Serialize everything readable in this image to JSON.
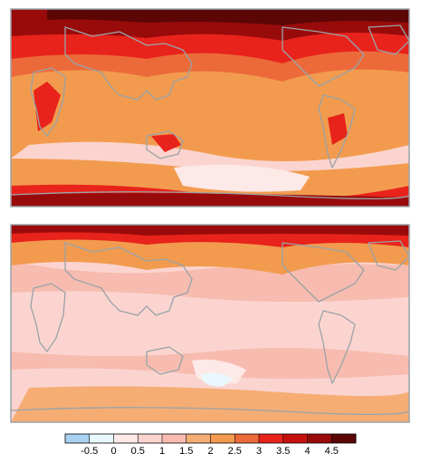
{
  "colorbar": {
    "range": [
      -1,
      5
    ],
    "ticks": [
      -0.5,
      0,
      0.5,
      1,
      1.5,
      2,
      2.5,
      3,
      3.5,
      4,
      4.5
    ],
    "colors": [
      "#a9d2f2",
      "#e9f8fd",
      "#fde9e7",
      "#fbd4d0",
      "#f7bcaf",
      "#f5ad74",
      "#f29b4e",
      "#ec6a3a",
      "#e8231b",
      "#c8110f",
      "#990b0b",
      "#5c0606"
    ]
  }
}
